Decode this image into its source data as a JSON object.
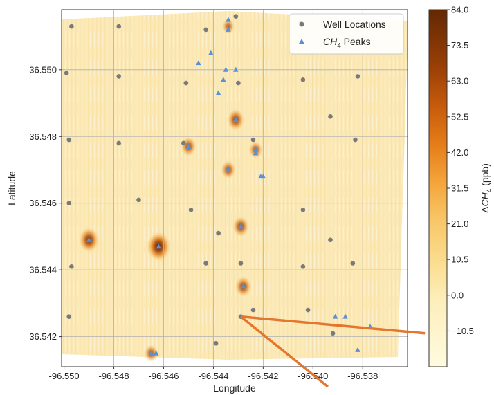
{
  "chart_data": {
    "type": "scatter",
    "title": "",
    "xlabel": "Longitude",
    "ylabel": "Latitude",
    "xlim": [
      -96.5501,
      -96.5362
    ],
    "ylim": [
      36.5411,
      36.5518
    ],
    "x_ticks": [
      "-96.550",
      "-96.548",
      "-96.546",
      "-96.544",
      "-96.542",
      "-96.540",
      "-96.538"
    ],
    "y_ticks": [
      "36.542",
      "36.544",
      "36.546",
      "36.548",
      "36.550"
    ],
    "grid": true,
    "legend_position": "top-right",
    "colors": {
      "wells": "#7a7a7a",
      "peaks": "#5b8fd6",
      "lines": "#e4762f",
      "map_base": "#fbe8b4"
    },
    "series": [
      {
        "name": "Well Locations",
        "marker": "circle",
        "points": [
          [
            -96.5497,
            36.5513
          ],
          [
            -96.5478,
            36.5513
          ],
          [
            -96.5443,
            36.5512
          ],
          [
            -96.5431,
            36.5516
          ],
          [
            -96.5405,
            36.5514
          ],
          [
            -96.5499,
            36.5499
          ],
          [
            -96.5478,
            36.5498
          ],
          [
            -96.5451,
            36.5496
          ],
          [
            -96.543,
            36.5496
          ],
          [
            -96.5404,
            36.5497
          ],
          [
            -96.5382,
            36.5498
          ],
          [
            -96.5393,
            36.5486
          ],
          [
            -96.5498,
            36.5479
          ],
          [
            -96.5478,
            36.5478
          ],
          [
            -96.5452,
            36.5478
          ],
          [
            -96.5424,
            36.5479
          ],
          [
            -96.5383,
            36.5479
          ],
          [
            -96.547,
            36.5461
          ],
          [
            -96.5498,
            36.546
          ],
          [
            -96.5449,
            36.5458
          ],
          [
            -96.5404,
            36.5458
          ],
          [
            -96.5438,
            36.5451
          ],
          [
            -96.5393,
            36.5449
          ],
          [
            -96.5497,
            36.5441
          ],
          [
            -96.5443,
            36.5442
          ],
          [
            -96.5429,
            36.5442
          ],
          [
            -96.5404,
            36.5441
          ],
          [
            -96.5384,
            36.5442
          ],
          [
            -96.5424,
            36.5428
          ],
          [
            -96.5402,
            36.5428
          ],
          [
            -96.5429,
            36.5426
          ],
          [
            -96.5498,
            36.5426
          ],
          [
            -96.5392,
            36.5421
          ],
          [
            -96.5439,
            36.5418
          ],
          [
            -96.5403,
            36.541
          ]
        ]
      },
      {
        "name": "$CH_4$ Peaks",
        "marker": "triangle",
        "points": [
          [
            -96.5434,
            36.5515
          ],
          [
            -96.5434,
            36.5512
          ],
          [
            -96.5441,
            36.5505
          ],
          [
            -96.5446,
            36.5502
          ],
          [
            -96.5435,
            36.55
          ],
          [
            -96.5431,
            36.55
          ],
          [
            -96.5436,
            36.5497
          ],
          [
            -96.5438,
            36.5493
          ],
          [
            -96.5431,
            36.5485
          ],
          [
            -96.545,
            36.5477
          ],
          [
            -96.5423,
            36.5476
          ],
          [
            -96.5423,
            36.5475
          ],
          [
            -96.5434,
            36.547
          ],
          [
            -96.5421,
            36.5468
          ],
          [
            -96.542,
            36.5468
          ],
          [
            -96.549,
            36.5449
          ],
          [
            -96.5462,
            36.5447
          ],
          [
            -96.5429,
            36.5453
          ],
          [
            -96.5428,
            36.5435
          ],
          [
            -96.5391,
            36.5426
          ],
          [
            -96.5387,
            36.5426
          ],
          [
            -96.5377,
            36.5423
          ],
          [
            -96.5382,
            36.5416
          ],
          [
            -96.5465,
            36.5415
          ],
          [
            -96.5463,
            36.5415
          ]
        ]
      }
    ],
    "hotspots": [
      {
        "lon": -96.5462,
        "lat": 36.5447,
        "strength": 1.0
      },
      {
        "lon": -96.549,
        "lat": 36.5449,
        "strength": 0.78
      },
      {
        "lon": -96.5431,
        "lat": 36.5485,
        "strength": 0.6
      },
      {
        "lon": -96.545,
        "lat": 36.5477,
        "strength": 0.5
      },
      {
        "lon": -96.5434,
        "lat": 36.547,
        "strength": 0.45
      },
      {
        "lon": -96.5429,
        "lat": 36.5453,
        "strength": 0.55
      },
      {
        "lon": -96.5428,
        "lat": 36.5435,
        "strength": 0.55
      },
      {
        "lon": -96.5423,
        "lat": 36.5476,
        "strength": 0.4
      },
      {
        "lon": -96.5465,
        "lat": 36.5415,
        "strength": 0.4
      },
      {
        "lon": -96.5434,
        "lat": 36.5513,
        "strength": 0.3
      }
    ],
    "lines": [
      {
        "from": [
          -96.5429,
          36.5426
        ],
        "to": [
          -96.5355,
          36.5421
        ]
      },
      {
        "from": [
          -96.5429,
          36.5426
        ],
        "to": [
          -96.5394,
          36.5405
        ]
      }
    ],
    "colorbar": {
      "label": "ΔCH$_4$ (ppb)",
      "min": -21,
      "max": 84,
      "tick_values": [
        84,
        73.5,
        63,
        52.5,
        42,
        31.5,
        21,
        10.5,
        0,
        -10.5
      ],
      "tick_labels": [
        "84.0",
        "73.5",
        "63.0",
        "52.5",
        "42.0",
        "31.5",
        "21.0",
        "10.5",
        "0.0",
        "−10.5"
      ]
    }
  },
  "legend": {
    "wells_label": "Well Locations",
    "peaks_label": "CH",
    "peaks_sub": "4",
    "peaks_suffix": " Peaks"
  },
  "axes": {
    "xlabel": "Longitude",
    "ylabel": "Latitude"
  },
  "colorbar_label": {
    "delta": "Δ",
    "ch": "CH",
    "sub": "4",
    "units": " (ppb)"
  }
}
